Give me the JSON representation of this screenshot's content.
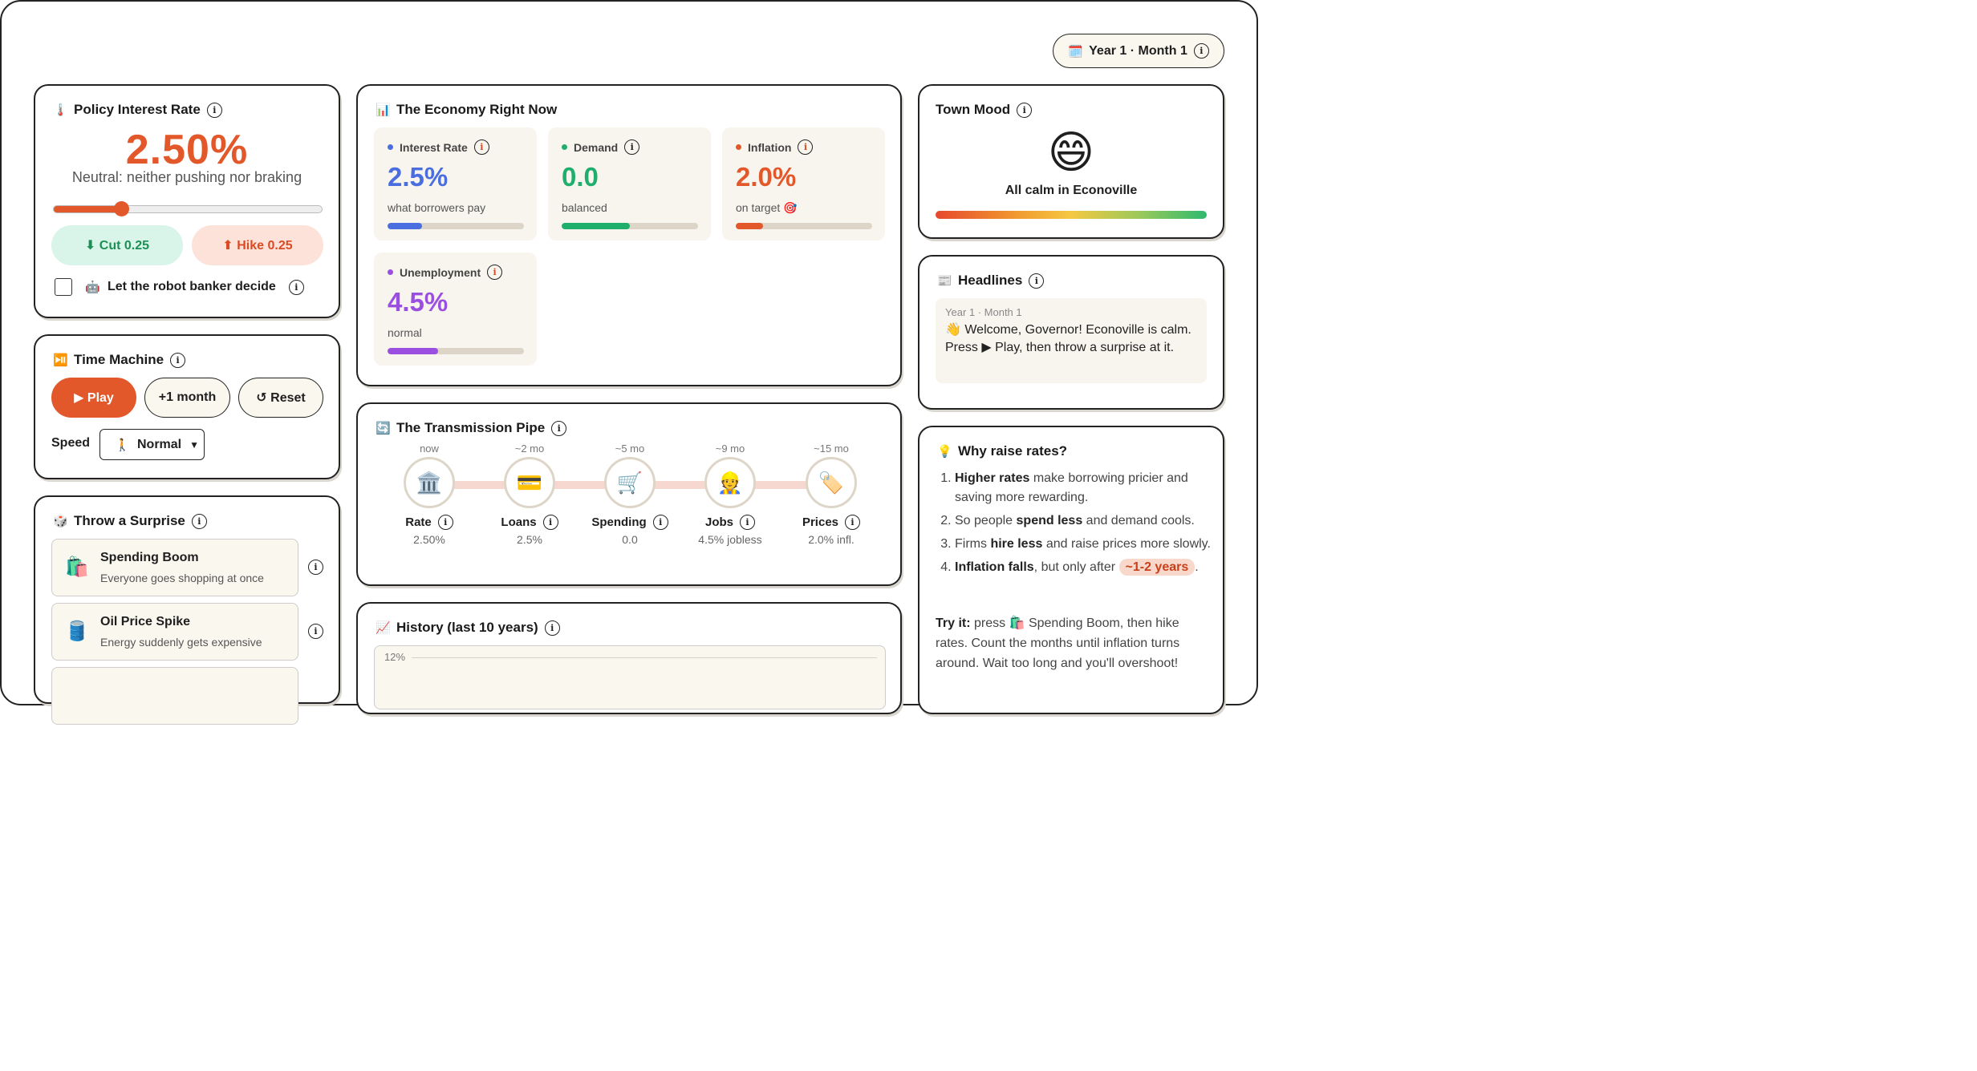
{
  "date": {
    "icon": "calendar-icon",
    "label": "Year 1 · Month 1"
  },
  "policy": {
    "title": "Policy Interest Rate",
    "icon": "thermometer-icon",
    "rate": "2.50%",
    "rate_value": 2.5,
    "rate_min": 0,
    "rate_max": 10,
    "subtitle": "Neutral: neither pushing nor braking",
    "cut_label": "⬇ Cut 0.25",
    "hike_label": "⬆ Hike 0.25",
    "robot_label": "Let the robot banker decide",
    "robot_checked": false
  },
  "time_machine": {
    "title": "Time Machine",
    "play_label": "▶ Play",
    "month_label": "+1 month",
    "reset_label": "↺ Reset",
    "speed_label": "Speed",
    "speed_value": "Normal"
  },
  "surprises": {
    "title": "Throw a Surprise",
    "items": [
      {
        "icon": "🛍️",
        "title": "Spending Boom",
        "desc": "Everyone goes shopping at once"
      },
      {
        "icon": "🛢️",
        "title": "Oil Price Spike",
        "desc": "Energy suddenly gets expensive"
      }
    ]
  },
  "economy": {
    "title": "The Economy Right Now",
    "tiles": [
      {
        "label": "Interest Rate",
        "value": "2.5%",
        "sub": "what borrowers pay",
        "color": "#4a6ee0",
        "level": 0.25
      },
      {
        "label": "Demand",
        "value": "0.0",
        "sub": "balanced",
        "color": "#1fae6b",
        "level": 0.5
      },
      {
        "label": "Inflation",
        "value": "2.0%",
        "sub": "on target 🎯",
        "color": "#e2582a",
        "level": 0.2
      },
      {
        "label": "Unemployment",
        "value": "4.5%",
        "sub": "normal",
        "color": "#9b4fe0",
        "level": 0.37
      }
    ]
  },
  "pipe": {
    "title": "The Transmission Pipe",
    "stages": [
      {
        "time": "now",
        "icon": "🏛️",
        "name": "Rate",
        "value": "2.50%"
      },
      {
        "time": "~2 mo",
        "icon": "💳",
        "name": "Loans",
        "value": "2.5%"
      },
      {
        "time": "~5 mo",
        "icon": "🛒",
        "name": "Spending",
        "value": "0.0"
      },
      {
        "time": "~9 mo",
        "icon": "👷",
        "name": "Jobs",
        "value": "4.5% jobless"
      },
      {
        "time": "~15 mo",
        "icon": "🏷️",
        "name": "Prices",
        "value": "2.0% infl."
      }
    ]
  },
  "history": {
    "title": "History (last 10 years)",
    "ytick": "12%"
  },
  "mood": {
    "title": "Town Mood",
    "face": "😄",
    "text": "All calm in Econoville"
  },
  "headlines": {
    "title": "Headlines",
    "date": "Year 1 · Month 1",
    "text": "👋 Welcome, Governor! Econoville is calm. Press ▶ Play, then throw a surprise at it."
  },
  "why": {
    "title": "Why raise rates?",
    "items": [
      {
        "bold": "Higher rates",
        "rest": " make borrowing pricier and saving more rewarding."
      },
      {
        "pre": "So people ",
        "bold": "spend less",
        "rest": " and demand cools."
      },
      {
        "pre": "Firms ",
        "bold": "hire less",
        "rest": " and raise prices more slowly."
      },
      {
        "bold": "Inflation falls",
        "rest": ", but only after ",
        "badge": "~1-2 years",
        "end": "."
      }
    ],
    "try_bold": "Try it:",
    "try_text": " press 🛍️ Spending Boom, then hike rates. Count the months until inflation turns around. Wait too long and you'll overshoot!"
  }
}
